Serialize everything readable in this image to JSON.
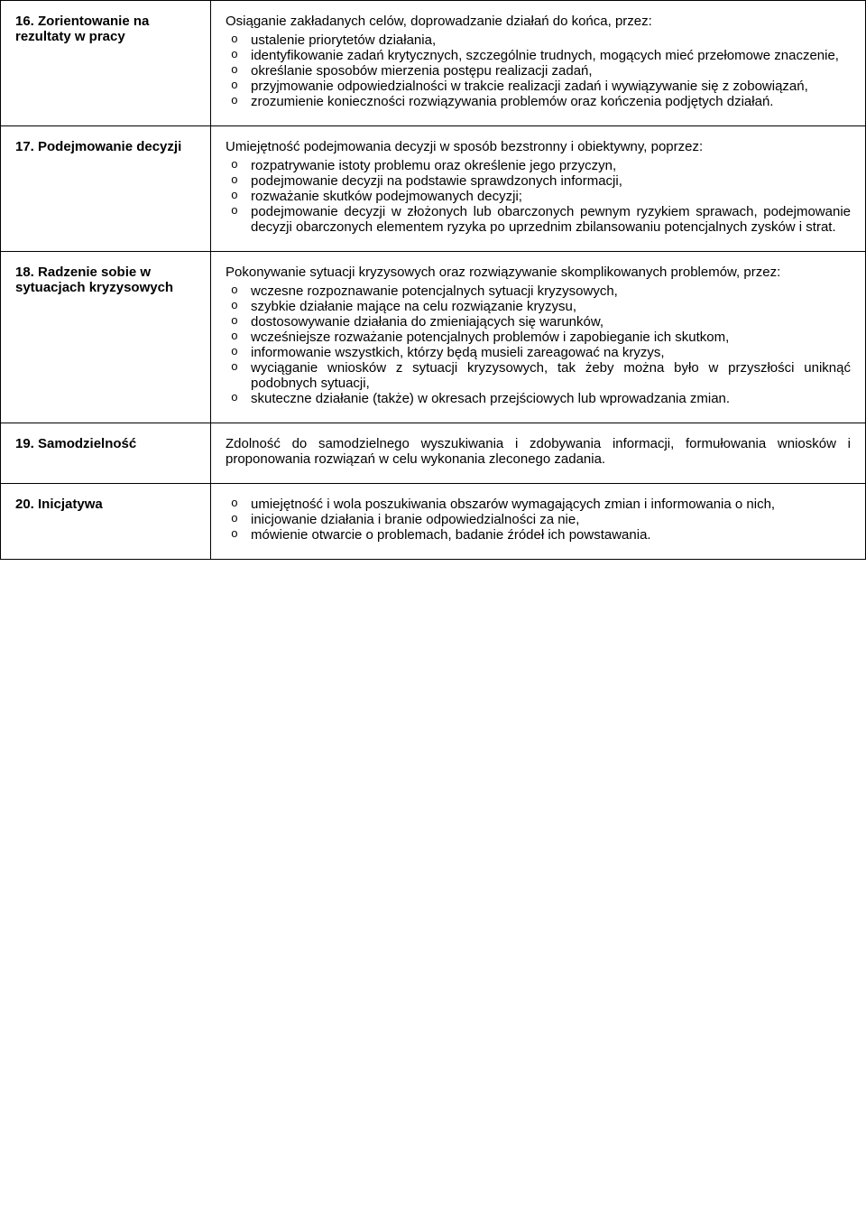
{
  "rows": [
    {
      "title": "16. Zorientowanie na rezultaty w pracy",
      "intro": "Osiąganie zakładanych celów, doprowadzanie działań do końca, przez:",
      "items": [
        "ustalenie priorytetów działania,",
        "identyfikowanie zadań krytycznych, szczególnie trudnych, mogących mieć przełomowe znaczenie,",
        "określanie sposobów mierzenia postępu realizacji zadań,",
        "przyjmowanie odpowiedzialności w trakcie realizacji zadań i wywiązywanie się z zobowiązań,",
        "zrozumienie konieczności rozwiązywania problemów oraz kończenia podjętych działań."
      ]
    },
    {
      "title": "17. Podejmowanie decyzji",
      "intro": "Umiejętność podejmowania decyzji w sposób bezstronny i obiektywny, poprzez:",
      "items": [
        "rozpatrywanie istoty problemu oraz określenie jego przyczyn,",
        "podejmowanie decyzji na podstawie sprawdzonych informacji,",
        "rozważanie skutków podejmowanych decyzji;",
        "podejmowanie decyzji w złożonych lub obarczonych pewnym ryzykiem sprawach, podejmowanie decyzji obarczonych elementem ryzyka po uprzednim zbilansowaniu potencjalnych zysków i strat."
      ]
    },
    {
      "title": "18. Radzenie sobie w sytuacjach kryzysowych",
      "intro": "Pokonywanie sytuacji kryzysowych oraz rozwiązywanie skomplikowanych problemów, przez:",
      "items": [
        "wczesne rozpoznawanie potencjalnych sytuacji kryzysowych,",
        "szybkie działanie mające na celu rozwiązanie kryzysu,",
        "dostosowywanie działania do zmieniających się warunków,",
        "wcześniejsze rozważanie potencjalnych problemów i zapobieganie ich skutkom,",
        "informowanie wszystkich, którzy będą musieli zareagować na kryzys,",
        "wyciąganie wniosków z sytuacji kryzysowych, tak żeby można było w przyszłości uniknąć podobnych sytuacji,",
        "skuteczne działanie (także) w okresach przejściowych lub wprowadzania zmian."
      ]
    },
    {
      "title": "19. Samodzielność",
      "plain": "Zdolność do samodzielnego wyszukiwania i zdobywania informacji, formułowania wniosków i proponowania rozwiązań w celu wykonania zleconego zadania."
    },
    {
      "title": "20. Inicjatywa",
      "items": [
        "umiejętność i wola poszukiwania obszarów wymagających zmian i informowania o nich,",
        "inicjowanie działania i branie odpowiedzialności za nie,",
        "mówienie otwarcie o problemach, badanie źródeł ich powstawania."
      ]
    }
  ]
}
